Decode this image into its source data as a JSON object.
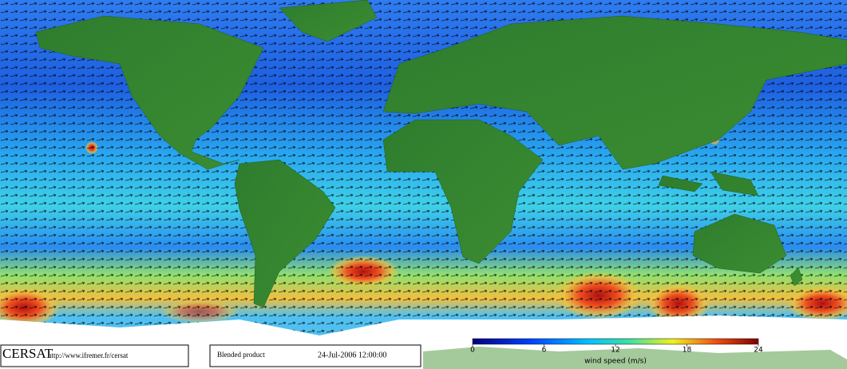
{
  "footer": {
    "logo": "CERSAT",
    "url": "http://www.ifremer.fr/cersat",
    "product": "Blended product",
    "date": "24-Jul-2006 12:00:00"
  },
  "colorbar": {
    "label": "wind speed (m/s)",
    "range": [
      0,
      24
    ],
    "ticks": [
      0,
      6,
      12,
      18,
      24
    ]
  }
}
